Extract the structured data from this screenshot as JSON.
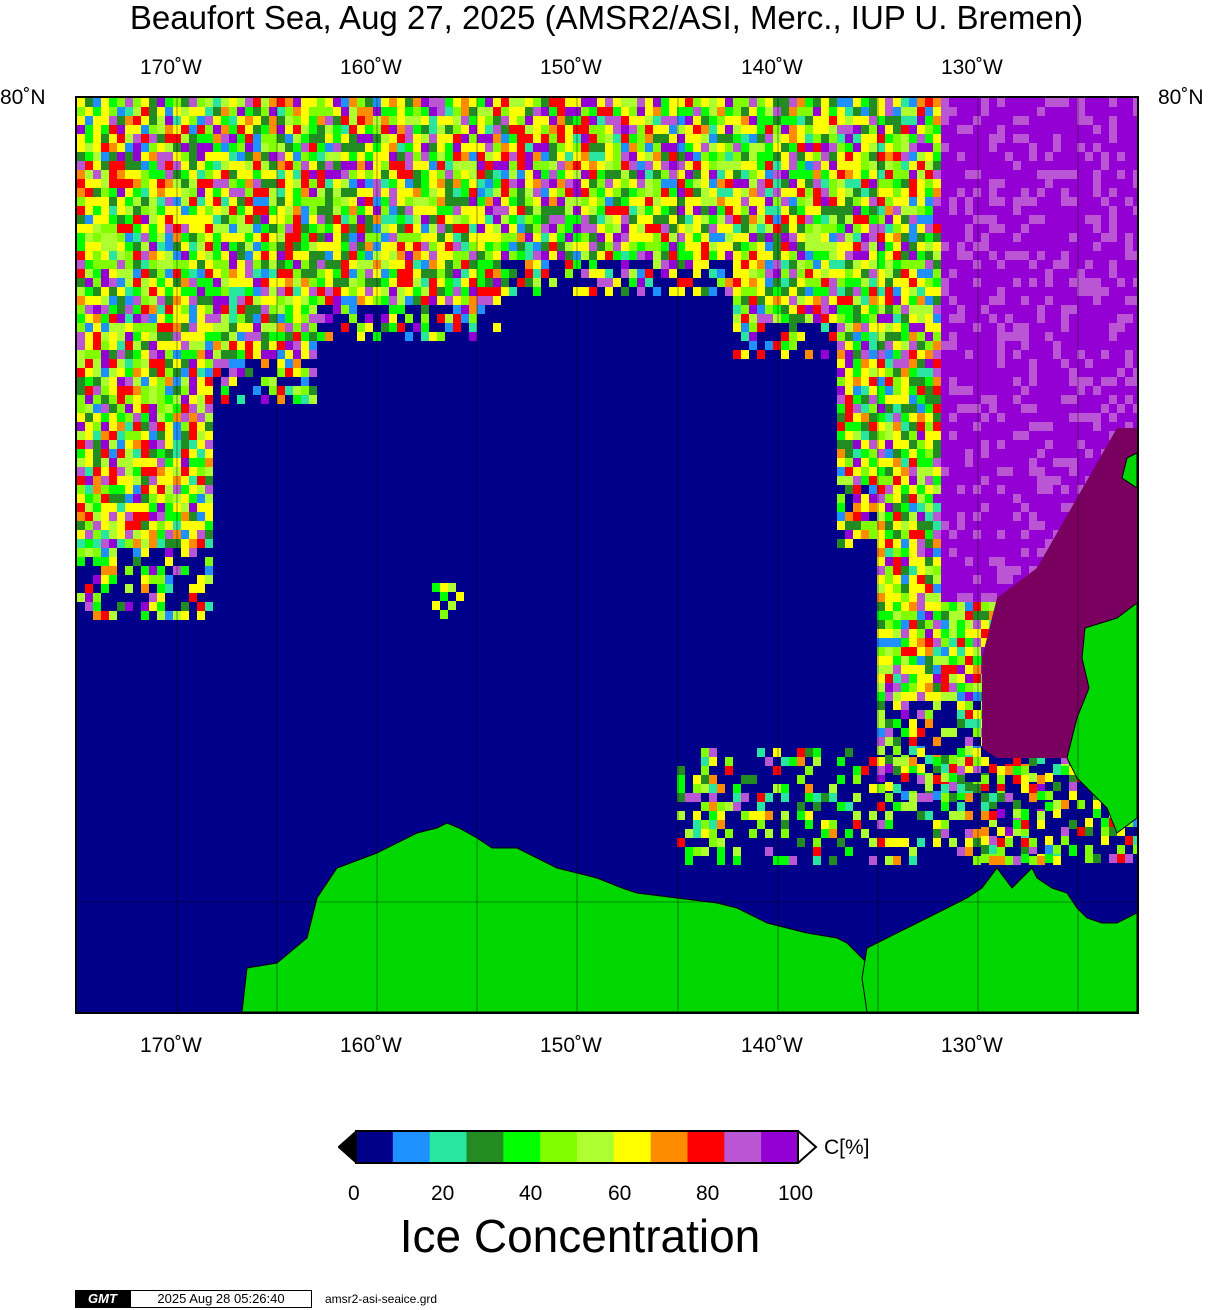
{
  "title": "Beaufort Sea, Aug 27, 2025 (AMSR2/ASI, Merc., IUP U. Bremen)",
  "axes": {
    "top_labels": [
      "170˚W",
      "160˚W",
      "150˚W",
      "140˚W",
      "130˚W"
    ],
    "bottom_labels": [
      "170˚W",
      "160˚W",
      "150˚W",
      "140˚W",
      "130˚W"
    ],
    "left_label": "80˚N",
    "right_label": "80˚N"
  },
  "colorbar": {
    "colors": [
      "#00008a",
      "#1e90ff",
      "#28e6a0",
      "#228b22",
      "#00ff00",
      "#7fff00",
      "#adff2f",
      "#ffff00",
      "#ff8c00",
      "#ff0000",
      "#ba55d3",
      "#9400d3"
    ],
    "tick_labels": [
      "0",
      "20",
      "40",
      "60",
      "80",
      "100"
    ],
    "unit": "C[%]",
    "title": "Ice Concentration",
    "low_color": "#000000",
    "high_color": "#ffffff"
  },
  "palette": {
    "ocean": "#00008a",
    "land": "#00d700",
    "dense_ice": "#7a005f"
  },
  "footer": {
    "logo": "GMT",
    "timestamp": "2025 Aug 28 05:26:40",
    "filename": "amsr2-asi-seaice.grd"
  }
}
